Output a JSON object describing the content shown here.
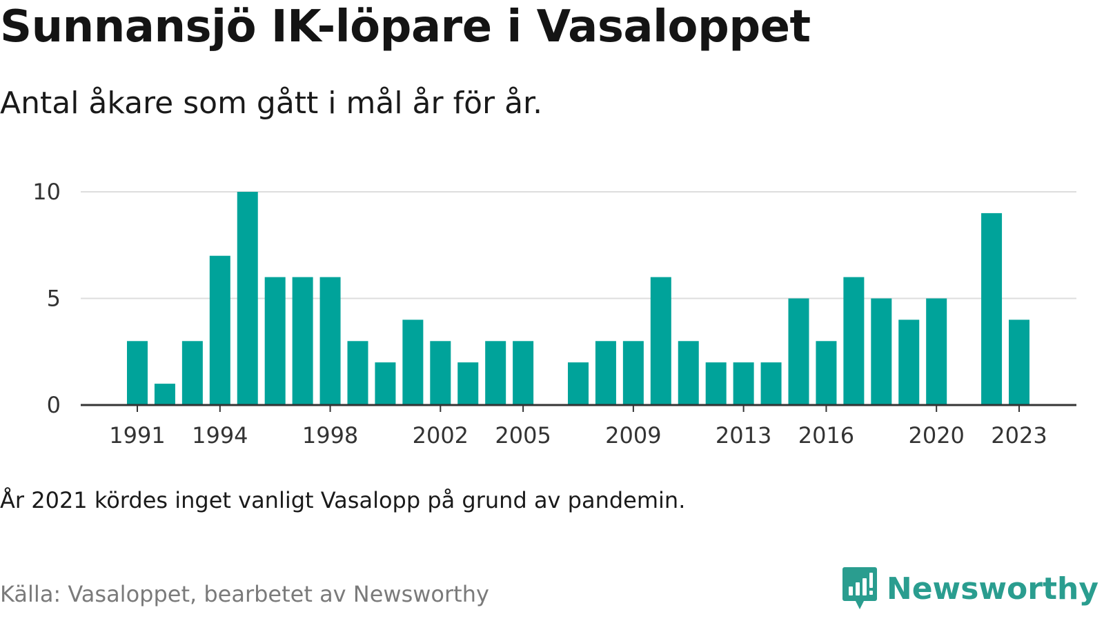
{
  "title": "Sunnansjö IK-löpare i Vasaloppet",
  "subtitle": "Antal åkare som gått i mål år för år.",
  "note": "År 2021 kördes inget vanligt Vasalopp på grund av pandemin.",
  "source": "Källa: Vasaloppet, bearbetet av Newsworthy",
  "brand": {
    "name": "Newsworthy",
    "icon": "newsworthy-logo-icon",
    "color": "#2a9d8f"
  },
  "chart_data": {
    "type": "bar",
    "title": "Sunnansjö IK-löpare i Vasaloppet",
    "subtitle": "Antal åkare som gått i mål år för år.",
    "xlabel": "",
    "ylabel": "",
    "bar_color": "#00a39a",
    "grid": true,
    "ylim": [
      0,
      10
    ],
    "yticks": [
      0,
      5,
      10
    ],
    "xticks": [
      "1991",
      "1994",
      "1998",
      "2002",
      "2005",
      "2009",
      "2013",
      "2016",
      "2020",
      "2023"
    ],
    "categories": [
      "1991",
      "1992",
      "1993",
      "1994",
      "1995",
      "1996",
      "1997",
      "1998",
      "1999",
      "2000",
      "2001",
      "2002",
      "2003",
      "2004",
      "2005",
      "2006",
      "2007",
      "2008",
      "2009",
      "2010",
      "2011",
      "2012",
      "2013",
      "2014",
      "2015",
      "2016",
      "2017",
      "2018",
      "2019",
      "2020",
      "2021",
      "2022",
      "2023"
    ],
    "values": [
      3,
      1,
      3,
      7,
      10,
      6,
      6,
      6,
      3,
      2,
      4,
      3,
      2,
      3,
      3,
      0,
      2,
      3,
      3,
      6,
      3,
      2,
      2,
      2,
      5,
      3,
      6,
      5,
      4,
      5,
      null,
      9,
      4
    ]
  }
}
